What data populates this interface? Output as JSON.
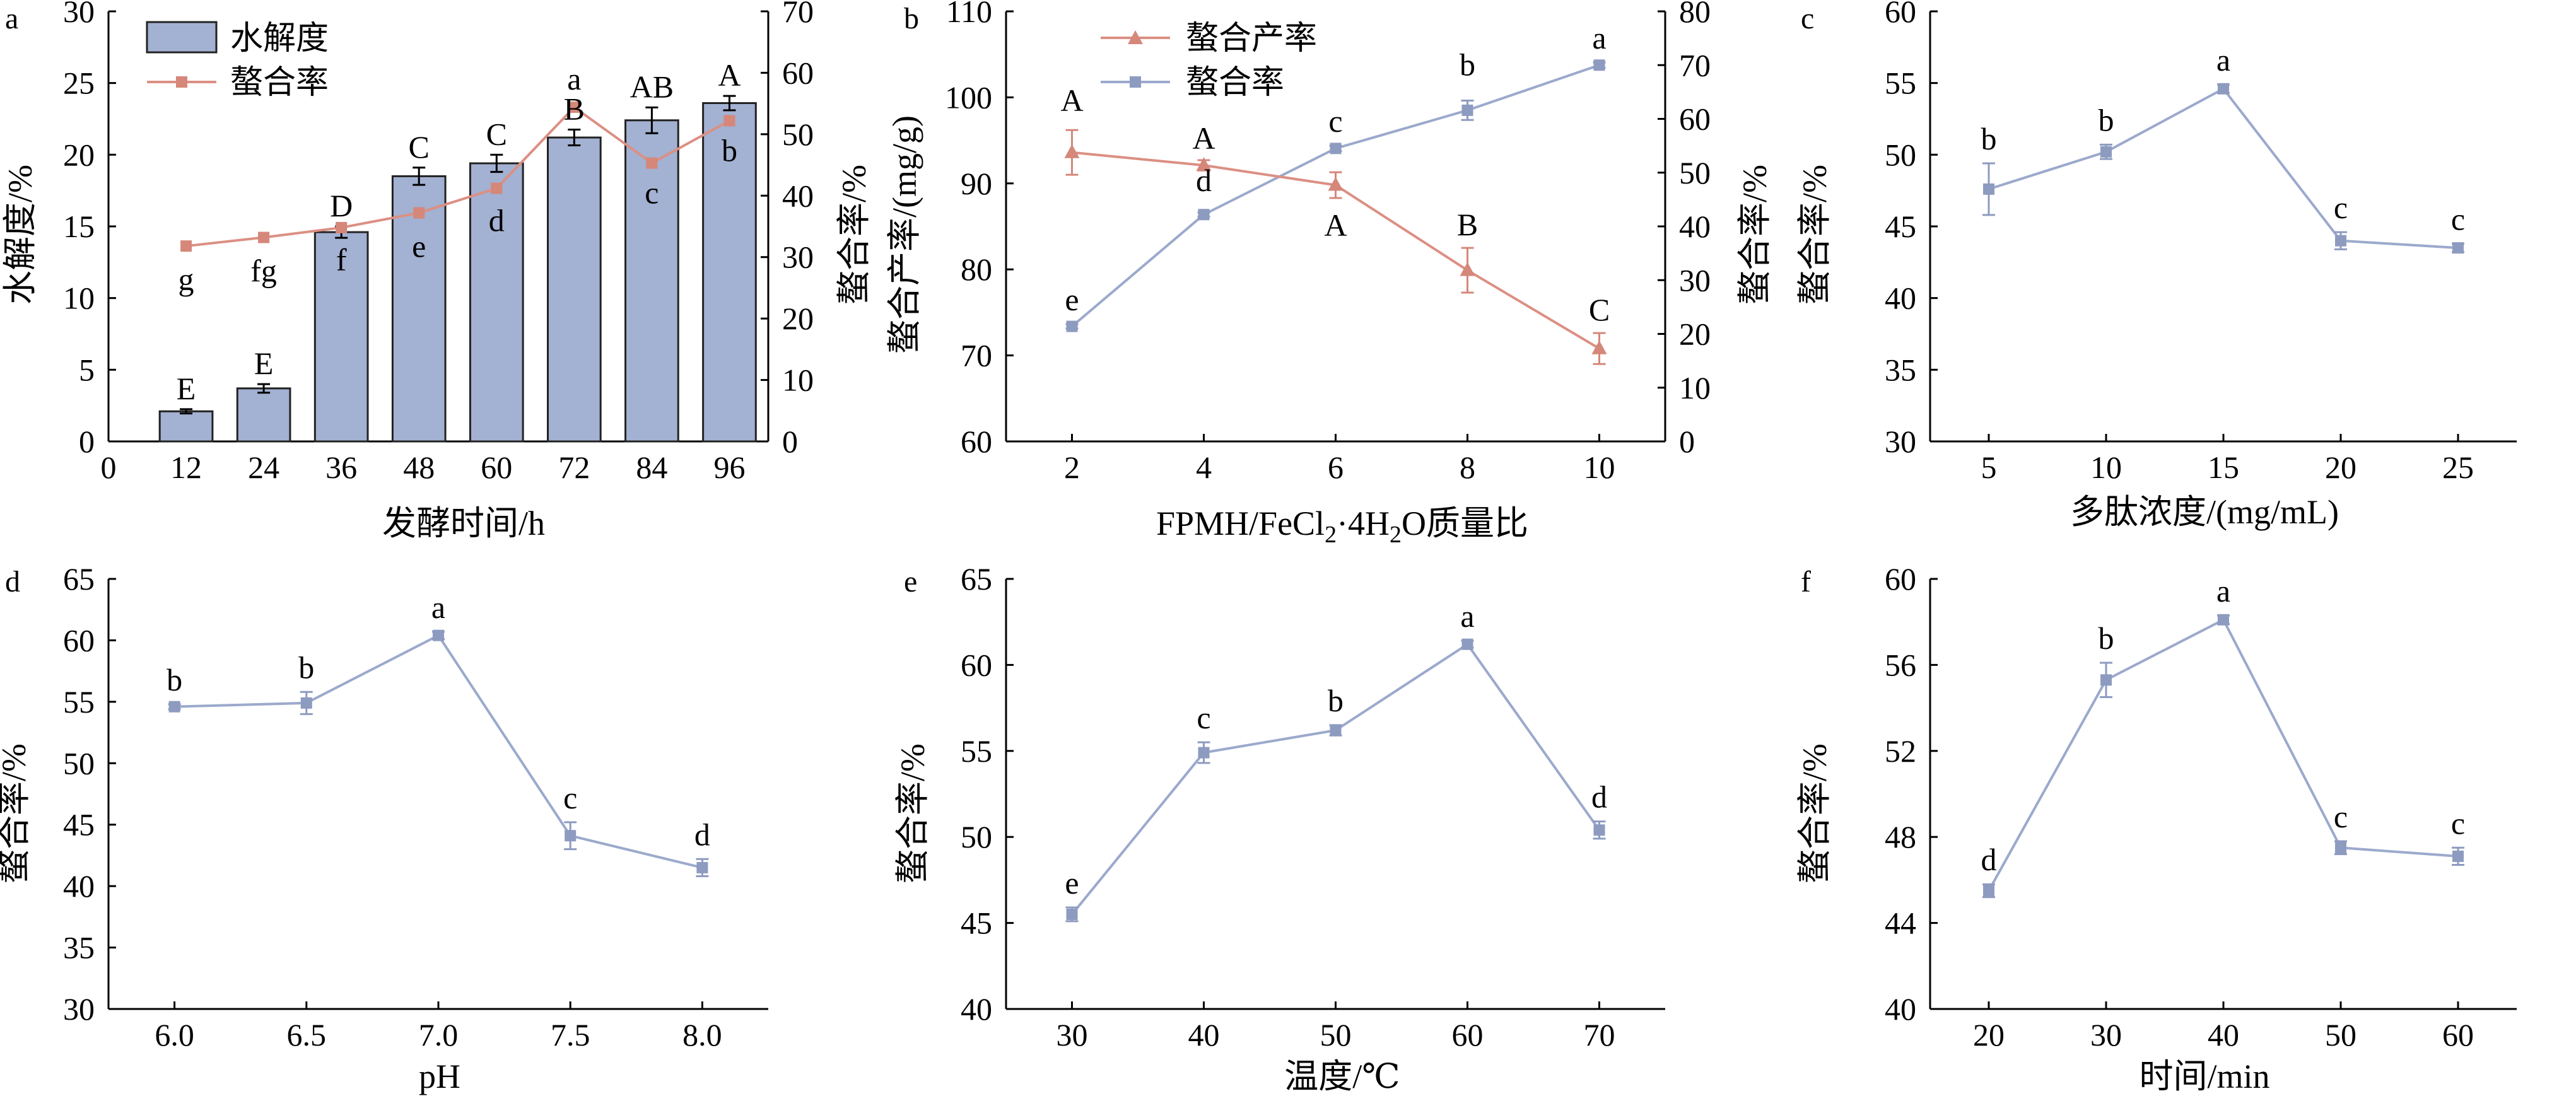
{
  "colors": {
    "bar_fill": "#a3b1d2",
    "bar_edge": "#222222",
    "blue_line": "#9ba9cc",
    "blue_marker": "#8e9bc0",
    "red_line": "#dc8f83",
    "red_marker": "#d5877a",
    "axis": "#000000"
  },
  "chart_data": [
    {
      "panel": "a",
      "type": "bar",
      "title": "",
      "xlabel": "发酵时间/h",
      "ylabel": "水解度/%",
      "y2label": "螯合率/%",
      "xlim": [
        0,
        102
      ],
      "xticks": [
        0,
        12,
        24,
        36,
        48,
        60,
        72,
        84,
        96
      ],
      "ylim": [
        0,
        30
      ],
      "yticks": [
        0,
        5,
        10,
        15,
        20,
        25,
        30
      ],
      "y2lim": [
        0,
        70
      ],
      "y2ticks": [
        0,
        10,
        20,
        30,
        40,
        50,
        60,
        70
      ],
      "legend": [
        "水解度",
        "螯合率"
      ],
      "legend_position": "top-left",
      "x": [
        12,
        24,
        36,
        48,
        60,
        72,
        84,
        96
      ],
      "series": [
        {
          "name": "水解度",
          "kind": "bar",
          "axis": "left",
          "values": [
            2.1,
            3.7,
            14.6,
            18.5,
            19.4,
            21.2,
            22.4,
            23.6
          ],
          "errors": [
            0.15,
            0.3,
            0.4,
            0.6,
            0.6,
            0.55,
            0.9,
            0.5
          ],
          "letters": [
            "E",
            "E",
            "D",
            "C",
            "C",
            "B",
            "AB",
            "A"
          ]
        },
        {
          "name": "螯合率",
          "kind": "line",
          "axis": "right",
          "values": [
            31.8,
            33.2,
            34.8,
            37.2,
            41.2,
            54.4,
            45.3,
            52.2
          ],
          "errors": [
            0,
            0,
            0,
            0,
            0,
            0,
            0,
            0
          ],
          "letters": [
            "g",
            "fg",
            "f",
            "e",
            "d",
            "a",
            "c",
            "b"
          ]
        }
      ]
    },
    {
      "panel": "b",
      "type": "line",
      "title": "",
      "xlabel": "FPMH/FeCl₂·4H₂O质量比",
      "xlabel_parts": {
        "a": "FPMH/FeCl",
        "b": "2",
        "c": "·4H",
        "d": "2",
        "e": "O质量比"
      },
      "ylabel": "螯合产率/(mg/g)",
      "y2label": "螯合率/%",
      "xlim": [
        1,
        11
      ],
      "xticks": [
        2,
        4,
        6,
        8,
        10
      ],
      "ylim": [
        60,
        110
      ],
      "yticks": [
        60,
        70,
        80,
        90,
        100,
        110
      ],
      "y2lim": [
        0,
        80
      ],
      "y2ticks": [
        0,
        10,
        20,
        30,
        40,
        50,
        60,
        70,
        80
      ],
      "legend": [
        "螯合产率",
        "螯合率"
      ],
      "legend_position": "top-left",
      "x": [
        2,
        4,
        6,
        8,
        10
      ],
      "series": [
        {
          "name": "螯合产率",
          "kind": "line",
          "axis": "left",
          "marker": "triangle",
          "values": [
            93.6,
            92.1,
            89.8,
            79.9,
            70.8
          ],
          "errors": [
            2.6,
            0.6,
            1.5,
            2.6,
            1.8
          ],
          "letters": [
            "A",
            "A",
            "A",
            "B",
            "C"
          ]
        },
        {
          "name": "螯合率",
          "kind": "line",
          "axis": "right",
          "marker": "square",
          "values": [
            21.4,
            42.2,
            54.5,
            61.6,
            70.0
          ],
          "errors": [
            0.4,
            0.4,
            0.5,
            1.8,
            0.5
          ],
          "letters": [
            "e",
            "d",
            "c",
            "b",
            "a"
          ]
        }
      ]
    },
    {
      "panel": "c",
      "type": "line",
      "title": "",
      "xlabel": "多肽浓度/(mg/mL)",
      "ylabel": "螯合率/%",
      "xlim": [
        2.5,
        27.5
      ],
      "xticks": [
        5,
        10,
        15,
        20,
        25
      ],
      "ylim": [
        30,
        60
      ],
      "yticks": [
        30,
        35,
        40,
        45,
        50,
        55,
        60
      ],
      "x": [
        5,
        10,
        15,
        20,
        25
      ],
      "series": [
        {
          "name": "螯合率",
          "kind": "line",
          "marker": "square",
          "values": [
            47.6,
            50.2,
            54.6,
            44.0,
            43.5
          ],
          "errors": [
            1.8,
            0.5,
            0.3,
            0.6,
            0.3
          ],
          "letters": [
            "b",
            "b",
            "a",
            "c",
            "c"
          ]
        }
      ]
    },
    {
      "panel": "d",
      "type": "line",
      "title": "",
      "xlabel": "pH",
      "ylabel": "螯合率/%",
      "xlim": [
        5.75,
        8.25
      ],
      "xticks": [
        6.0,
        6.5,
        7.0,
        7.5,
        8.0
      ],
      "xtick_labels": [
        "6.0",
        "6.5",
        "7.0",
        "7.5",
        "8.0"
      ],
      "ylim": [
        30,
        65
      ],
      "yticks": [
        30,
        35,
        40,
        45,
        50,
        55,
        60,
        65
      ],
      "x": [
        6.0,
        6.5,
        7.0,
        7.5,
        8.0
      ],
      "series": [
        {
          "name": "螯合率",
          "kind": "line",
          "marker": "square",
          "values": [
            54.6,
            54.9,
            60.4,
            44.1,
            41.5
          ],
          "errors": [
            0.2,
            0.9,
            0.3,
            1.1,
            0.7
          ],
          "letters": [
            "b",
            "b",
            "a",
            "c",
            "d"
          ]
        }
      ]
    },
    {
      "panel": "e",
      "type": "line",
      "title": "",
      "xlabel": "温度/℃",
      "ylabel": "螯合率/%",
      "xlim": [
        25,
        75
      ],
      "xticks": [
        30,
        40,
        50,
        60,
        70
      ],
      "ylim": [
        40,
        65
      ],
      "yticks": [
        40,
        45,
        50,
        55,
        60,
        65
      ],
      "x": [
        30,
        40,
        50,
        60,
        70
      ],
      "series": [
        {
          "name": "螯合率",
          "kind": "line",
          "marker": "square",
          "values": [
            45.5,
            54.9,
            56.2,
            61.2,
            50.4
          ],
          "errors": [
            0.4,
            0.6,
            0.3,
            0.2,
            0.5
          ],
          "letters": [
            "e",
            "c",
            "b",
            "a",
            "d"
          ]
        }
      ]
    },
    {
      "panel": "f",
      "type": "line",
      "title": "",
      "xlabel": "时间/min",
      "ylabel": "螯合率/%",
      "xlim": [
        15,
        65
      ],
      "xticks": [
        20,
        30,
        40,
        50,
        60
      ],
      "ylim": [
        40,
        60
      ],
      "yticks": [
        40,
        44,
        48,
        52,
        56,
        60
      ],
      "x": [
        20,
        30,
        40,
        50,
        60
      ],
      "series": [
        {
          "name": "螯合率",
          "kind": "line",
          "marker": "square",
          "values": [
            45.5,
            55.3,
            58.1,
            47.5,
            47.1
          ],
          "errors": [
            0.3,
            0.8,
            0.2,
            0.3,
            0.4
          ],
          "letters": [
            "d",
            "b",
            "a",
            "c",
            "c"
          ]
        }
      ]
    }
  ]
}
